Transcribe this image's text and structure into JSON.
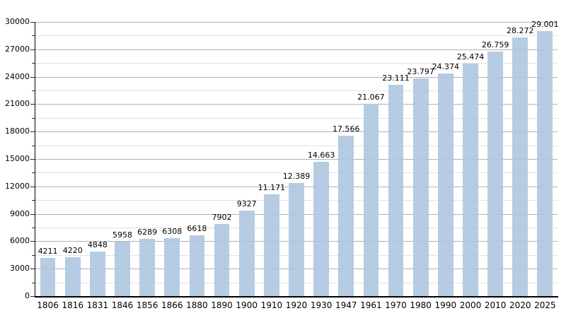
{
  "chart_data": {
    "type": "bar",
    "title": "",
    "subtitle": "",
    "xlabel": "",
    "ylabel": "",
    "legend_position": "none",
    "grid": true,
    "categories": [
      "1806",
      "1816",
      "1831",
      "1846",
      "1856",
      "1866",
      "1880",
      "1890",
      "1900",
      "1910",
      "1920",
      "1930",
      "1947",
      "1961",
      "1970",
      "1980",
      "1990",
      "2000",
      "2010",
      "2020",
      "2025"
    ],
    "values": [
      4211,
      4220,
      4848,
      5958,
      6289,
      6308,
      6618,
      7902,
      9327,
      11171,
      12389,
      14663,
      17566,
      21067,
      23111,
      23797,
      24374,
      25474,
      26759,
      28272,
      29001
    ],
    "bar_labels": [
      "4211",
      "4220",
      "4848",
      "5958",
      "6289",
      "6308",
      "6618",
      "7902",
      "9327",
      "11.171",
      "12.389",
      "14.663",
      "17.566",
      "21.067",
      "23.111",
      "23.797",
      "24.374",
      "25.474",
      "26.759",
      "28.272",
      "29.001"
    ],
    "ylim": [
      0,
      30000
    ],
    "y_major_step": 3000,
    "y_minor_step": 1500,
    "y_tick_labels": [
      "0",
      "3000",
      "6000",
      "9000",
      "12000",
      "15000",
      "18000",
      "21000",
      "24000",
      "27000",
      "30000"
    ],
    "colors": {
      "bar_fill": "#adc6e0",
      "bar_opacity": 0.9,
      "grid_major": "#b2b2b2",
      "grid_minor": "#e2e2e2",
      "axis": "#000000",
      "text": "#000000",
      "background": "#ffffff"
    }
  }
}
